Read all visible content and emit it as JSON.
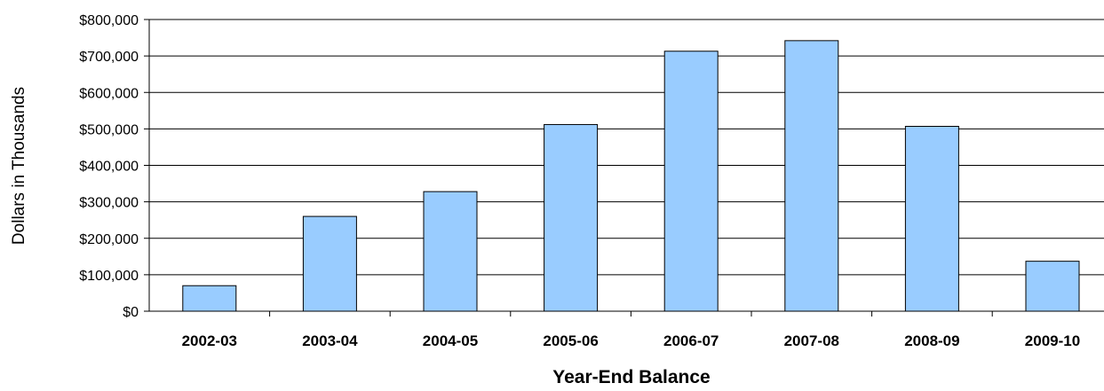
{
  "chart_data": {
    "type": "bar",
    "categories": [
      "2002-03",
      "2003-04",
      "2004-05",
      "2005-06",
      "2006-07",
      "2007-08",
      "2008-09",
      "2009-10"
    ],
    "values": [
      70000,
      260000,
      328000,
      512000,
      713000,
      742000,
      507000,
      137000
    ],
    "title": "",
    "xlabel": "Year-End Balance",
    "ylabel": "Dollars in Thousands",
    "ylim": [
      0,
      800000
    ],
    "yticks": [
      0,
      100000,
      200000,
      300000,
      400000,
      500000,
      600000,
      700000,
      800000
    ],
    "ytick_labels": [
      "$0",
      "$100,000",
      "$200,000",
      "$300,000",
      "$400,000",
      "$500,000",
      "$600,000",
      "$700,000",
      "$800,000"
    ],
    "grid": true,
    "legend": "none",
    "bar_color": "#99ccff",
    "bar_edge_color": "#000000"
  }
}
